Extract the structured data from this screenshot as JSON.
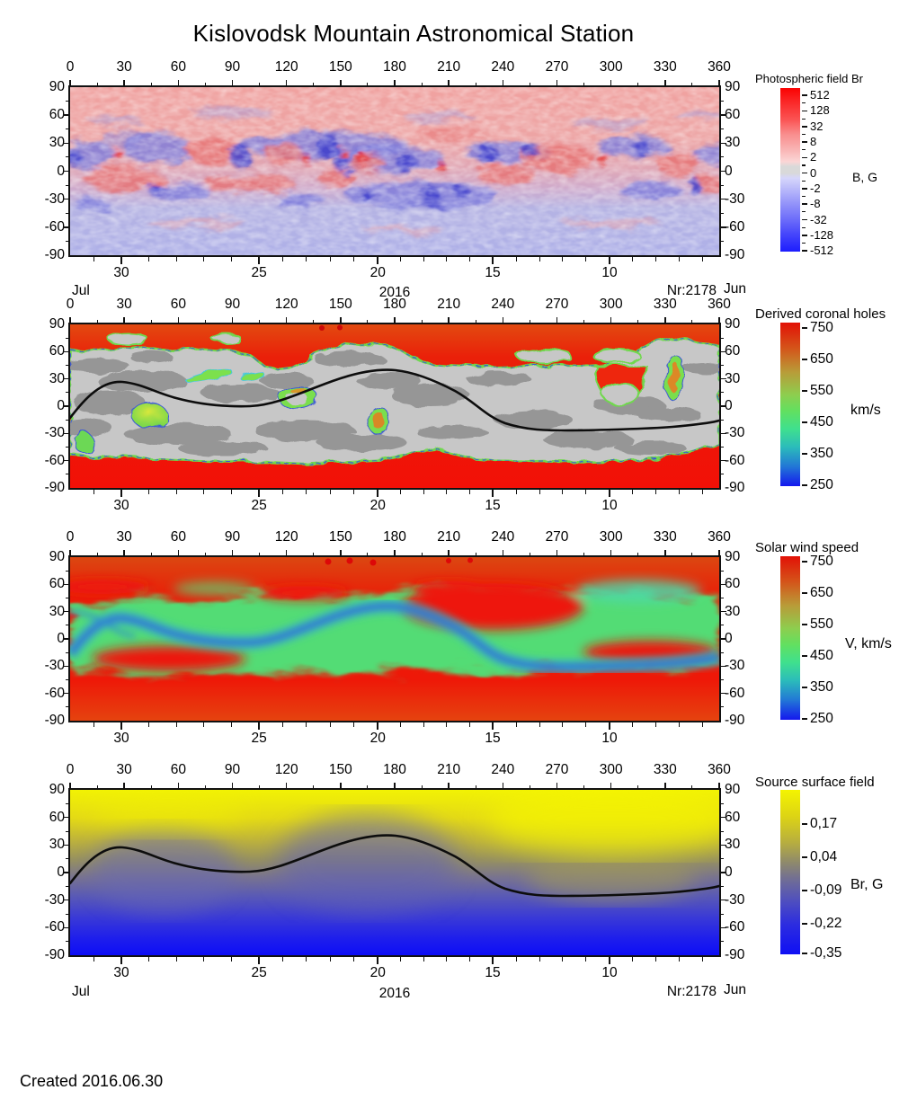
{
  "title": "Kislovodsk Mountain Astronomical Station",
  "footer": {
    "created": "Created  2016.06.30"
  },
  "axes": {
    "longitude_ticks_deg": [
      0,
      30,
      60,
      90,
      120,
      150,
      180,
      210,
      240,
      270,
      300,
      330,
      360
    ],
    "latitude_ticks_deg": [
      90,
      60,
      30,
      0,
      -30,
      -60,
      -90
    ],
    "date_axis": {
      "tick_labels": [
        "30",
        "25",
        "20",
        "15",
        "10"
      ],
      "tick_positions": [
        0.079,
        0.291,
        0.474,
        0.651,
        0.831
      ],
      "month_left": "Jul",
      "month_right": "Jun",
      "year": "2016",
      "rotation_label": "Nr:2178"
    }
  },
  "chart_data": [
    {
      "type": "heatmap",
      "panel": "photospheric-field-br",
      "colorbar_title": "Photospheric field Br",
      "colorbar_unit": "B, G",
      "colorbar_ticks": [
        "512",
        "128",
        "32",
        "8",
        "2",
        "0",
        "-2",
        "-8",
        "-32",
        "-128",
        "-512"
      ],
      "colorbar_tick_positions": [
        0.045,
        0.14,
        0.235,
        0.33,
        0.425,
        0.52,
        0.615,
        0.71,
        0.805,
        0.9,
        0.995
      ],
      "colorbar_minor_ticks": true,
      "palette_top_to_bottom": [
        "#fa0202",
        "#f98c8c",
        "#d9d9d9",
        "#9292f9",
        "#1d1dfe"
      ],
      "x_ticks": [
        0,
        30,
        60,
        90,
        120,
        150,
        180,
        210,
        240,
        270,
        300,
        330,
        360
      ],
      "y_ticks": [
        90,
        60,
        30,
        0,
        -30,
        -60,
        -90
      ],
      "xlim_deg": [
        0,
        360
      ],
      "ylim_deg": [
        -90,
        90
      ],
      "show_period_row": true
    },
    {
      "type": "heatmap",
      "panel": "derived-coronal-holes",
      "colorbar_title": "Derived coronal holes",
      "colorbar_unit": "km/s",
      "colorbar_ticks": [
        "750",
        "650",
        "550",
        "450",
        "350",
        "250"
      ],
      "colorbar_tick_positions": [
        0.033,
        0.225,
        0.418,
        0.61,
        0.803,
        0.995
      ],
      "colorbar_minor_ticks": false,
      "palette_top_to_bottom": [
        "#e21106",
        "#b99b38",
        "#62e060",
        "#2bbcba",
        "#1418ee"
      ],
      "x_ticks": [
        0,
        30,
        60,
        90,
        120,
        150,
        180,
        210,
        240,
        270,
        300,
        330,
        360
      ],
      "y_ticks": [
        90,
        60,
        30,
        0,
        -30,
        -60,
        -90
      ],
      "xlim_deg": [
        0,
        360
      ],
      "ylim_deg": [
        -90,
        90
      ],
      "show_period_row": false
    },
    {
      "type": "heatmap",
      "panel": "solar-wind-speed",
      "colorbar_title": "Solar wind speed",
      "colorbar_unit": "V, km/s",
      "colorbar_ticks": [
        "750",
        "650",
        "550",
        "450",
        "350",
        "250"
      ],
      "colorbar_tick_positions": [
        0.033,
        0.225,
        0.418,
        0.61,
        0.803,
        0.995
      ],
      "colorbar_minor_ticks": false,
      "palette_top_to_bottom": [
        "#e21106",
        "#b99b38",
        "#62e060",
        "#2bbcba",
        "#1418ee"
      ],
      "x_ticks": [
        0,
        30,
        60,
        90,
        120,
        150,
        180,
        210,
        240,
        270,
        300,
        330,
        360
      ],
      "y_ticks": [
        90,
        60,
        30,
        0,
        -30,
        -60,
        -90
      ],
      "xlim_deg": [
        0,
        360
      ],
      "ylim_deg": [
        -90,
        90
      ],
      "show_period_row": false
    },
    {
      "type": "heatmap",
      "panel": "source-surface-field",
      "colorbar_title": "Source surface field",
      "colorbar_unit": "Br, G",
      "colorbar_ticks": [
        "0,17",
        "0,04",
        "-0,09",
        "-0,22",
        "-0,35"
      ],
      "colorbar_tick_positions": [
        0.208,
        0.41,
        0.612,
        0.814,
        0.995
      ],
      "colorbar_minor_ticks": false,
      "palette_top_to_bottom": [
        "#f4f400",
        "#b7ae3f",
        "#6f6c97",
        "#2c2ce0",
        "#0f0ff4"
      ],
      "x_ticks": [
        0,
        30,
        60,
        90,
        120,
        150,
        180,
        210,
        240,
        270,
        300,
        330,
        360
      ],
      "y_ticks": [
        90,
        60,
        30,
        0,
        -30,
        -60,
        -90
      ],
      "xlim_deg": [
        0,
        360
      ],
      "ylim_deg": [
        -90,
        90
      ],
      "show_period_row": true
    }
  ]
}
